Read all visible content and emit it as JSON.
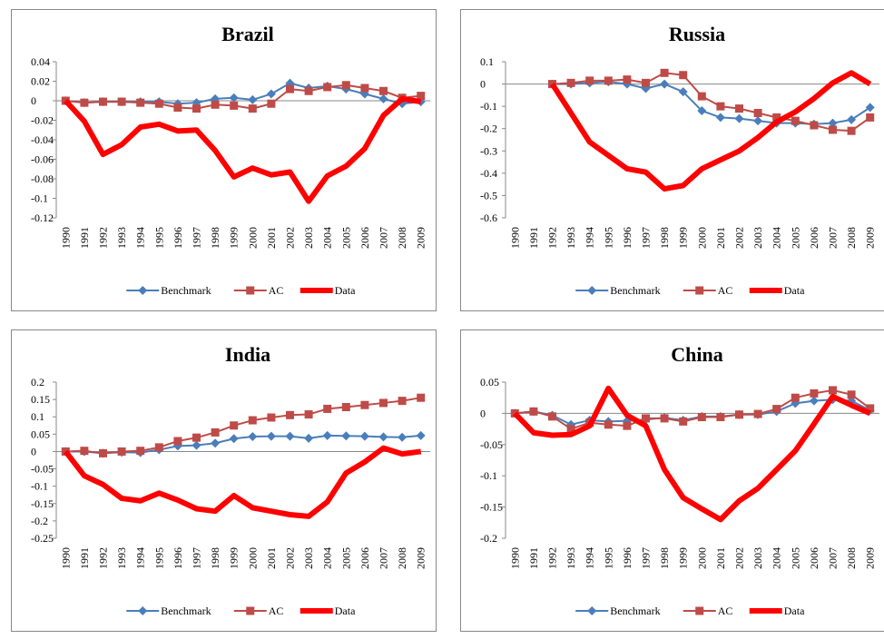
{
  "chart_data": [
    {
      "type": "line",
      "title": "Brazil",
      "categories": [
        "1990",
        "1991",
        "1992",
        "1993",
        "1994",
        "1995",
        "1996",
        "1997",
        "1998",
        "1999",
        "2000",
        "2001",
        "2002",
        "2003",
        "2004",
        "2005",
        "2006",
        "2007",
        "2008",
        "2009"
      ],
      "ylim": [
        -0.12,
        0.04
      ],
      "yticks": [
        -0.12,
        -0.1,
        -0.08,
        -0.06,
        -0.04,
        -0.02,
        0,
        0.02,
        0.04
      ],
      "grid": false,
      "legend": "bottom",
      "series": [
        {
          "name": "Benchmark",
          "color": "#4a7ebb",
          "marker": "diamond",
          "line_width": 2,
          "values": [
            0,
            -0.002,
            -0.001,
            -0.001,
            -0.001,
            -0.001,
            -0.003,
            -0.002,
            0.002,
            0.003,
            0.001,
            0.007,
            0.018,
            0.013,
            0.015,
            0.012,
            0.007,
            0.002,
            -0.003,
            -0.001
          ]
        },
        {
          "name": "AC",
          "color": "#be4b48",
          "marker": "square",
          "line_width": 2,
          "values": [
            0,
            -0.002,
            -0.001,
            -0.001,
            -0.002,
            -0.003,
            -0.007,
            -0.008,
            -0.004,
            -0.005,
            -0.008,
            -0.003,
            0.012,
            0.01,
            0.014,
            0.016,
            0.013,
            0.01,
            0.003,
            0.005
          ]
        },
        {
          "name": "Data",
          "color": "#ff0000",
          "marker": "none",
          "line_width": 6,
          "values": [
            0,
            -0.021,
            -0.055,
            -0.045,
            -0.027,
            -0.024,
            -0.031,
            -0.03,
            -0.051,
            -0.078,
            -0.069,
            -0.076,
            -0.073,
            -0.103,
            -0.077,
            -0.067,
            -0.049,
            -0.015,
            0.002,
            -0.001
          ]
        }
      ]
    },
    {
      "type": "line",
      "title": "Russia",
      "categories": [
        "1990",
        "1991",
        "1992",
        "1993",
        "1994",
        "1995",
        "1996",
        "1997",
        "1998",
        "1999",
        "2000",
        "2001",
        "2002",
        "2003",
        "2004",
        "2005",
        "2006",
        "2007",
        "2008",
        "2009"
      ],
      "ylim": [
        -0.6,
        0.1
      ],
      "yticks": [
        -0.6,
        -0.5,
        -0.4,
        -0.3,
        -0.2,
        -0.1,
        0,
        0.1
      ],
      "grid": false,
      "legend": "bottom",
      "series": [
        {
          "name": "Benchmark",
          "color": "#4a7ebb",
          "marker": "diamond",
          "line_width": 2,
          "values": [
            null,
            null,
            0,
            0,
            0.005,
            0.01,
            0,
            -0.02,
            0,
            -0.035,
            -0.12,
            -0.15,
            -0.155,
            -0.165,
            -0.175,
            -0.175,
            -0.18,
            -0.175,
            -0.16,
            -0.105
          ]
        },
        {
          "name": "AC",
          "color": "#be4b48",
          "marker": "square",
          "line_width": 2,
          "values": [
            null,
            null,
            0,
            0.005,
            0.015,
            0.015,
            0.02,
            0.005,
            0.05,
            0.04,
            -0.055,
            -0.1,
            -0.11,
            -0.13,
            -0.15,
            -0.165,
            -0.185,
            -0.205,
            -0.21,
            -0.15
          ]
        },
        {
          "name": "Data",
          "color": "#ff0000",
          "marker": "none",
          "line_width": 6,
          "values": [
            null,
            null,
            0,
            -0.13,
            -0.26,
            -0.32,
            -0.38,
            -0.395,
            -0.47,
            -0.455,
            -0.38,
            -0.34,
            -0.3,
            -0.24,
            -0.17,
            -0.125,
            -0.065,
            0.005,
            0.05,
            0
          ]
        }
      ]
    },
    {
      "type": "line",
      "title": "India",
      "categories": [
        "1990",
        "1991",
        "1992",
        "1993",
        "1994",
        "1995",
        "1996",
        "1997",
        "1998",
        "1999",
        "2000",
        "2001",
        "2002",
        "2003",
        "2004",
        "2005",
        "2006",
        "2007",
        "2008",
        "2009"
      ],
      "ylim": [
        -0.25,
        0.2
      ],
      "yticks": [
        -0.25,
        -0.2,
        -0.15,
        -0.1,
        -0.05,
        0,
        0.05,
        0.1,
        0.15,
        0.2
      ],
      "grid": false,
      "legend": "bottom",
      "series": [
        {
          "name": "Benchmark",
          "color": "#4a7ebb",
          "marker": "diamond",
          "line_width": 2,
          "values": [
            0,
            0,
            -0.005,
            -0.002,
            -0.003,
            0.005,
            0.016,
            0.018,
            0.024,
            0.037,
            0.043,
            0.044,
            0.044,
            0.038,
            0.046,
            0.045,
            0.044,
            0.042,
            0.041,
            0.046
          ]
        },
        {
          "name": "AC",
          "color": "#be4b48",
          "marker": "square",
          "line_width": 2,
          "values": [
            0,
            0.002,
            -0.005,
            0,
            0.002,
            0.012,
            0.03,
            0.04,
            0.055,
            0.075,
            0.09,
            0.098,
            0.105,
            0.107,
            0.123,
            0.128,
            0.134,
            0.14,
            0.146,
            0.155
          ]
        },
        {
          "name": "Data",
          "color": "#ff0000",
          "marker": "none",
          "line_width": 6,
          "values": [
            0,
            -0.07,
            -0.095,
            -0.135,
            -0.142,
            -0.12,
            -0.14,
            -0.165,
            -0.172,
            -0.127,
            -0.162,
            -0.172,
            -0.182,
            -0.187,
            -0.145,
            -0.062,
            -0.03,
            0.01,
            -0.007,
            0
          ]
        }
      ]
    },
    {
      "type": "line",
      "title": "China",
      "categories": [
        "1990",
        "1991",
        "1992",
        "1993",
        "1994",
        "1995",
        "1996",
        "1997",
        "1998",
        "1999",
        "2000",
        "2001",
        "2002",
        "2003",
        "2004",
        "2005",
        "2006",
        "2007",
        "2008",
        "2009"
      ],
      "ylim": [
        -0.2,
        0.05
      ],
      "yticks": [
        -0.2,
        -0.15,
        -0.1,
        -0.05,
        0,
        0.05
      ],
      "grid": false,
      "legend": "bottom",
      "series": [
        {
          "name": "Benchmark",
          "color": "#4a7ebb",
          "marker": "diamond",
          "line_width": 2,
          "values": [
            0,
            0.003,
            -0.003,
            -0.018,
            -0.011,
            -0.013,
            -0.012,
            -0.01,
            -0.007,
            -0.011,
            -0.005,
            -0.005,
            -0.002,
            -0.002,
            0.003,
            0.016,
            0.02,
            0.022,
            0.02,
            0.005
          ]
        },
        {
          "name": "AC",
          "color": "#be4b48",
          "marker": "square",
          "line_width": 2,
          "values": [
            0,
            0.003,
            -0.005,
            -0.025,
            -0.015,
            -0.018,
            -0.02,
            -0.008,
            -0.008,
            -0.013,
            -0.006,
            -0.006,
            -0.002,
            -0.001,
            0.007,
            0.025,
            0.032,
            0.037,
            0.03,
            0.008
          ]
        },
        {
          "name": "Data",
          "color": "#ff0000",
          "marker": "none",
          "line_width": 6,
          "values": [
            0,
            -0.031,
            -0.035,
            -0.034,
            -0.02,
            0.04,
            -0.003,
            -0.02,
            -0.09,
            -0.135,
            -0.153,
            -0.17,
            -0.14,
            -0.12,
            -0.09,
            -0.06,
            -0.017,
            0.027,
            0.013,
            0
          ]
        }
      ]
    }
  ]
}
